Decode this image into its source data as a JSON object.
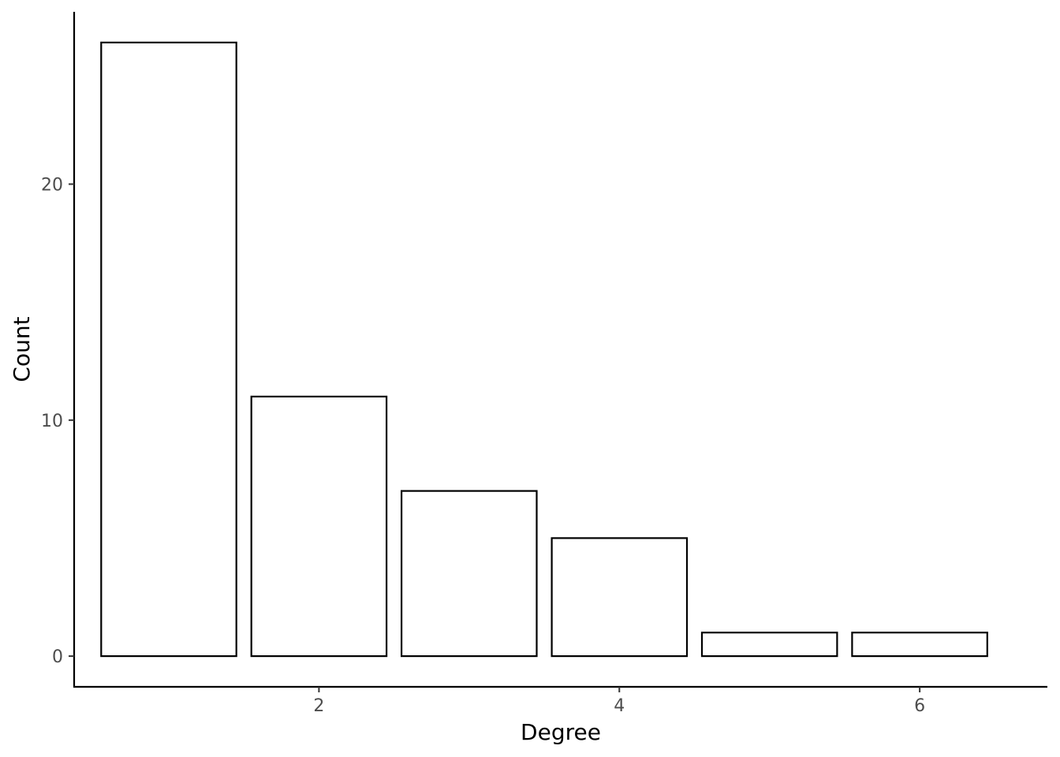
{
  "chart_data": {
    "type": "bar",
    "x": [
      1,
      2,
      3,
      4,
      5,
      6
    ],
    "values": [
      26,
      11,
      7,
      5,
      1,
      1
    ],
    "xlabel": "Degree",
    "ylabel": "Count",
    "xlim": [
      0.37,
      6.85
    ],
    "ylim": [
      -1.3,
      27.3
    ],
    "x_ticks": [
      2,
      4,
      6
    ],
    "y_ticks": [
      0,
      10,
      20
    ],
    "bar_width": 0.9,
    "grid": false,
    "bar_fill": "#ffffff",
    "bar_outline": "#000000"
  }
}
